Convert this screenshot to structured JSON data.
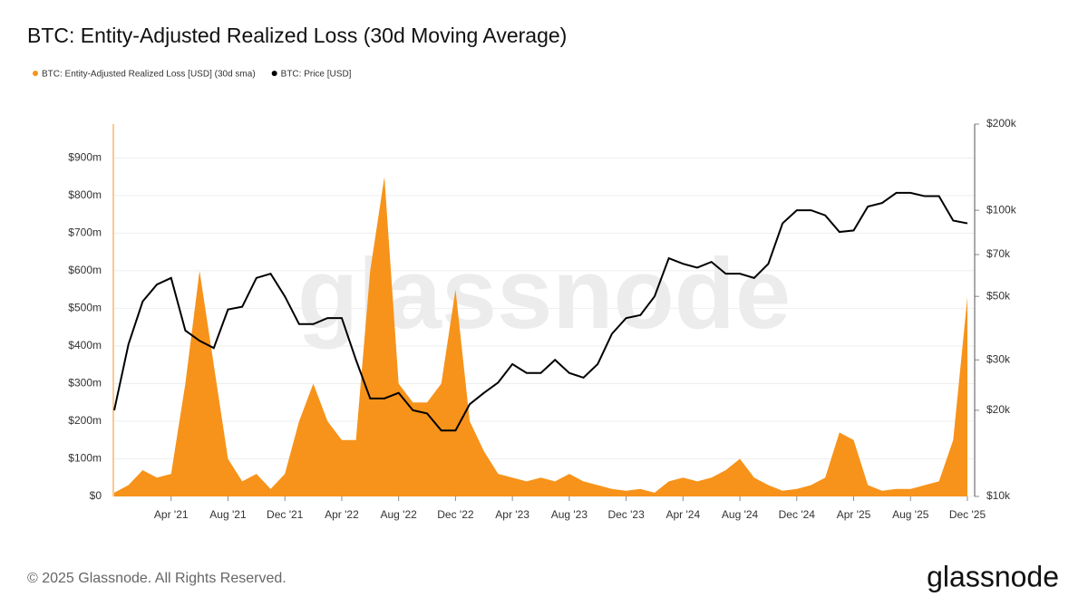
{
  "chart_data": {
    "type": "area-line",
    "title": "BTC: Entity-Adjusted Realized Loss (30d Moving Average)",
    "watermark": "glassnode",
    "footer": "© 2025 Glassnode. All Rights Reserved.",
    "logo": "glassnode",
    "legend_position": "top-left",
    "x": [
      "2020-12",
      "2021-01",
      "2021-02",
      "2021-03",
      "2021-04",
      "2021-05",
      "2021-06",
      "2021-07",
      "2021-08",
      "2021-09",
      "2021-10",
      "2021-11",
      "2021-12",
      "2022-01",
      "2022-02",
      "2022-03",
      "2022-04",
      "2022-05",
      "2022-06",
      "2022-07",
      "2022-08",
      "2022-09",
      "2022-10",
      "2022-11",
      "2022-12",
      "2023-01",
      "2023-02",
      "2023-03",
      "2023-04",
      "2023-05",
      "2023-06",
      "2023-07",
      "2023-08",
      "2023-09",
      "2023-10",
      "2023-11",
      "2023-12",
      "2024-01",
      "2024-02",
      "2024-03",
      "2024-04",
      "2024-05",
      "2024-06",
      "2024-07",
      "2024-08",
      "2024-09",
      "2024-10",
      "2024-11",
      "2024-12",
      "2025-01",
      "2025-02",
      "2025-03",
      "2025-04",
      "2025-05",
      "2025-06",
      "2025-07",
      "2025-08",
      "2025-09",
      "2025-10",
      "2025-11",
      "2025-12"
    ],
    "xlim": [
      "2020-12",
      "2025-12"
    ],
    "xticks": [
      {
        "value": "2021-04",
        "label": "Apr '21"
      },
      {
        "value": "2021-08",
        "label": "Aug '21"
      },
      {
        "value": "2021-12",
        "label": "Dec '21"
      },
      {
        "value": "2022-04",
        "label": "Apr '22"
      },
      {
        "value": "2022-08",
        "label": "Aug '22"
      },
      {
        "value": "2022-12",
        "label": "Dec '22"
      },
      {
        "value": "2023-04",
        "label": "Apr '23"
      },
      {
        "value": "2023-08",
        "label": "Aug '23"
      },
      {
        "value": "2023-12",
        "label": "Dec '23"
      },
      {
        "value": "2024-04",
        "label": "Apr '24"
      },
      {
        "value": "2024-08",
        "label": "Aug '24"
      },
      {
        "value": "2024-12",
        "label": "Dec '24"
      },
      {
        "value": "2025-04",
        "label": "Apr '25"
      },
      {
        "value": "2025-08",
        "label": "Aug '25"
      },
      {
        "value": "2025-12",
        "label": "Dec '25"
      }
    ],
    "ylim": [
      0,
      990000000
    ],
    "yticks": [
      {
        "value": 0,
        "label": "$0"
      },
      {
        "value": 100000000,
        "label": "$100m"
      },
      {
        "value": 200000000,
        "label": "$200m"
      },
      {
        "value": 300000000,
        "label": "$300m"
      },
      {
        "value": 400000000,
        "label": "$400m"
      },
      {
        "value": 500000000,
        "label": "$500m"
      },
      {
        "value": 600000000,
        "label": "$600m"
      },
      {
        "value": 700000000,
        "label": "$700m"
      },
      {
        "value": 800000000,
        "label": "$800m"
      },
      {
        "value": 900000000,
        "label": "$900m"
      }
    ],
    "y2lim": [
      10000,
      200000
    ],
    "y2_log": true,
    "y2ticks": [
      {
        "value": 10000,
        "label": "$10k"
      },
      {
        "value": 20000,
        "label": "$20k"
      },
      {
        "value": 30000,
        "label": "$30k"
      },
      {
        "value": 50000,
        "label": "$50k"
      },
      {
        "value": 70000,
        "label": "$70k"
      },
      {
        "value": 100000,
        "label": "$100k"
      },
      {
        "value": 200000,
        "label": "$200k"
      }
    ],
    "grid": true,
    "series": [
      {
        "name": "BTC: Entity-Adjusted Realized Loss [USD] (30d sma)",
        "color": "#f7931a",
        "kind": "area",
        "values": [
          10000000,
          30000000,
          70000000,
          50000000,
          60000000,
          300000000,
          600000000,
          350000000,
          100000000,
          40000000,
          60000000,
          20000000,
          60000000,
          200000000,
          300000000,
          200000000,
          150000000,
          150000000,
          600000000,
          850000000,
          300000000,
          250000000,
          250000000,
          300000000,
          550000000,
          200000000,
          120000000,
          60000000,
          50000000,
          40000000,
          50000000,
          40000000,
          60000000,
          40000000,
          30000000,
          20000000,
          15000000,
          20000000,
          10000000,
          40000000,
          50000000,
          40000000,
          50000000,
          70000000,
          100000000,
          50000000,
          30000000,
          15000000,
          20000000,
          30000000,
          50000000,
          170000000,
          150000000,
          30000000,
          15000000,
          20000000,
          20000000,
          30000000,
          40000000,
          150000000,
          530000000
        ]
      },
      {
        "name": "BTC: Price [USD]",
        "color": "#000000",
        "kind": "line",
        "axis": "y2",
        "values": [
          20000,
          34000,
          48000,
          55000,
          58000,
          38000,
          35000,
          33000,
          45000,
          46000,
          58000,
          60000,
          50000,
          40000,
          40000,
          42000,
          42000,
          30000,
          22000,
          22000,
          23000,
          20000,
          19500,
          17000,
          17000,
          21000,
          23000,
          25000,
          29000,
          27000,
          27000,
          30000,
          27000,
          26000,
          29000,
          37000,
          42000,
          43000,
          50000,
          68000,
          65000,
          63000,
          66000,
          60000,
          60000,
          58000,
          65000,
          90000,
          100000,
          100000,
          96000,
          84000,
          85000,
          103000,
          106000,
          115000,
          115000,
          112000,
          112000,
          92000,
          90000
        ]
      }
    ]
  }
}
